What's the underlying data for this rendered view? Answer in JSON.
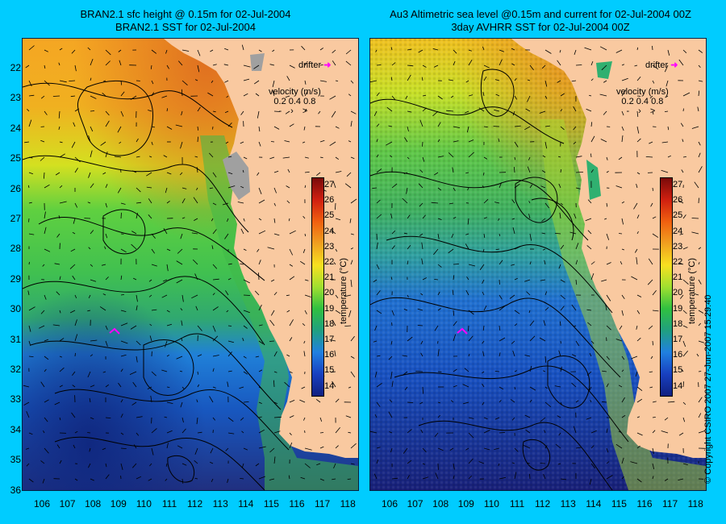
{
  "left_panel": {
    "title_line1": "BRAN2.1 sfc height @ 0.15m for 02-Jul-2004",
    "title_line2": "BRAN2.1 SST for 02-Jul-2004"
  },
  "right_panel": {
    "title_line1": "Au3 Altimetric sea level  @0.15m and current for 02-Jul-2004 00Z",
    "title_line2": "3day AVHRR SST for 02-Jul-2004 00Z"
  },
  "axes": {
    "latitudes": [
      "22",
      "23",
      "24",
      "25",
      "26",
      "27",
      "28",
      "29",
      "30",
      "31",
      "32",
      "33",
      "34",
      "35",
      "36"
    ],
    "longitudes": [
      "106",
      "107",
      "108",
      "109",
      "110",
      "111",
      "112",
      "113",
      "114",
      "115",
      "116",
      "117",
      "118"
    ]
  },
  "legend": {
    "drifter_label": "drifter",
    "velocity_label": "velocity (m/s)",
    "velocity_values": "0.2 0.4 0.8",
    "colorbar_title": "temperature (°C)",
    "colorbar_ticks": [
      "27",
      "26",
      "25",
      "24",
      "23",
      "22",
      "21",
      "20",
      "19",
      "18",
      "17",
      "16",
      "15",
      "14"
    ]
  },
  "copyright": "© Copyright CSIRO 2007   27-Jun-2007 15:29:40",
  "colors": {
    "land": "#f9c9a0",
    "background": "#00ccff",
    "drifter": "#ff00ff"
  }
}
